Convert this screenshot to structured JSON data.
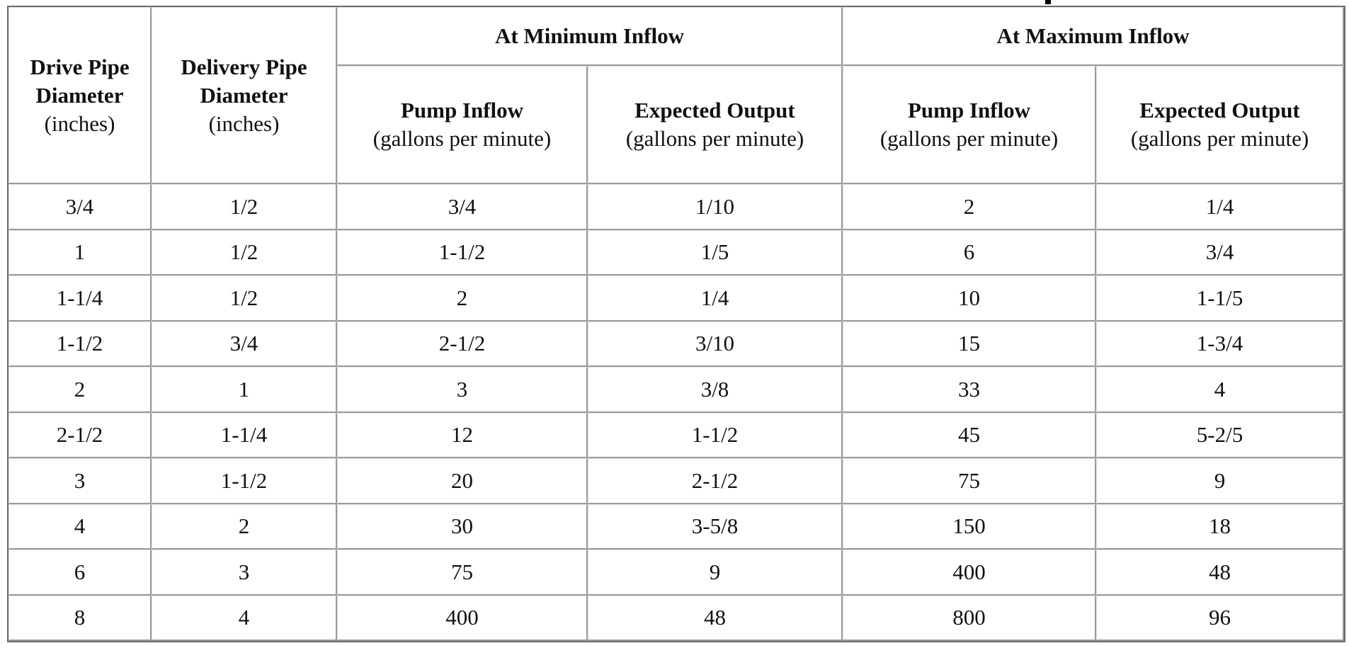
{
  "table": {
    "group_headers": [
      {
        "label": "At Minimum Inflow"
      },
      {
        "label": "At Maximum Inflow"
      }
    ],
    "columns": [
      {
        "title": "Drive Pipe Diameter",
        "title_line1": "Drive Pipe",
        "title_line2": "Diameter",
        "unit": "(inches)"
      },
      {
        "title": "Delivery Pipe Diameter",
        "title_line1": "Delivery Pipe",
        "title_line2": "Diameter",
        "unit": "(inches)"
      },
      {
        "title": "Pump Inflow",
        "unit": "(gallons per minute)"
      },
      {
        "title": "Expected Output",
        "unit": "(gallons per minute)"
      },
      {
        "title": "Pump Inflow",
        "unit": "(gallons per minute)"
      },
      {
        "title": "Expected Output",
        "unit": "(gallons per minute)"
      }
    ],
    "rows": [
      [
        "3/4",
        "1/2",
        "3/4",
        "1/10",
        "2",
        "1/4"
      ],
      [
        "1",
        "1/2",
        "1-1/2",
        "1/5",
        "6",
        "3/4"
      ],
      [
        "1-1/4",
        "1/2",
        "2",
        "1/4",
        "10",
        "1-1/5"
      ],
      [
        "1-1/2",
        "3/4",
        "2-1/2",
        "3/10",
        "15",
        "1-3/4"
      ],
      [
        "2",
        "1",
        "3",
        "3/8",
        "33",
        "4"
      ],
      [
        "2-1/2",
        "1-1/4",
        "12",
        "1-1/2",
        "45",
        "5-2/5"
      ],
      [
        "3",
        "1-1/2",
        "20",
        "2-1/2",
        "75",
        "9"
      ],
      [
        "4",
        "2",
        "30",
        "3-5/8",
        "150",
        "18"
      ],
      [
        "6",
        "3",
        "75",
        "9",
        "400",
        "48"
      ],
      [
        "8",
        "4",
        "400",
        "48",
        "800",
        "96"
      ]
    ]
  }
}
